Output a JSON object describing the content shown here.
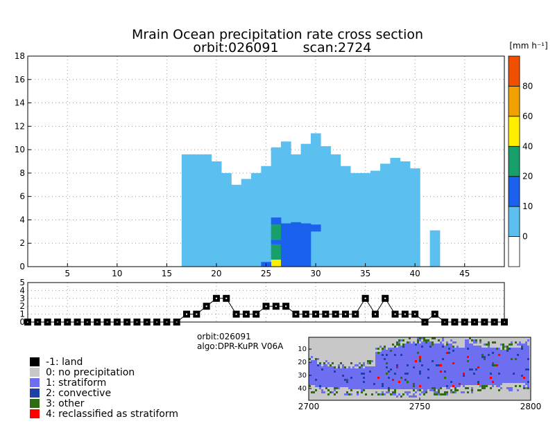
{
  "title_line1": "Mrain Ocean precipitation rate cross section",
  "title_line2_orbit": "orbit:026091",
  "title_line2_scan": "scan:2724",
  "unit_label": "[mm h⁻¹]",
  "chart_data": [
    {
      "type": "heatmap",
      "name": "precipitation-cross-section",
      "title": "Mrain Ocean precipitation rate cross section",
      "xlim": [
        1,
        49
      ],
      "ylim": [
        0,
        18
      ],
      "x_ticks": [
        5,
        10,
        15,
        20,
        25,
        30,
        35,
        40,
        45
      ],
      "y_ticks": [
        0,
        2,
        4,
        6,
        8,
        10,
        12,
        14,
        16,
        18
      ],
      "grid": true,
      "colorbar": {
        "boundaries": [
          0,
          1,
          10,
          20,
          40,
          60,
          80,
          100
        ],
        "labels": [
          "0",
          "10",
          "20",
          "40",
          "60",
          "80"
        ],
        "colors": [
          "#ffffff",
          "#5bc0f0",
          "#1a62ee",
          "#19a06a",
          "#ffee00",
          "#f0a000",
          "#f05000"
        ]
      },
      "echo_top_km": [
        {
          "ray": 17,
          "top": 9.6
        },
        {
          "ray": 18,
          "top": 9.6
        },
        {
          "ray": 19,
          "top": 9.6
        },
        {
          "ray": 20,
          "top": 9.0
        },
        {
          "ray": 21,
          "top": 8.0
        },
        {
          "ray": 22,
          "top": 7.0
        },
        {
          "ray": 23,
          "top": 7.5
        },
        {
          "ray": 24,
          "top": 8.0
        },
        {
          "ray": 25,
          "top": 8.6
        },
        {
          "ray": 26,
          "top": 10.2
        },
        {
          "ray": 27,
          "top": 10.7
        },
        {
          "ray": 28,
          "top": 9.6
        },
        {
          "ray": 29,
          "top": 10.5
        },
        {
          "ray": 30,
          "top": 11.4
        },
        {
          "ray": 31,
          "top": 10.3
        },
        {
          "ray": 32,
          "top": 9.6
        },
        {
          "ray": 33,
          "top": 8.6
        },
        {
          "ray": 34,
          "top": 8.0
        },
        {
          "ray": 35,
          "top": 8.0
        },
        {
          "ray": 36,
          "top": 8.2
        },
        {
          "ray": 37,
          "top": 8.8
        },
        {
          "ray": 38,
          "top": 9.3
        },
        {
          "ray": 39,
          "top": 9.0
        },
        {
          "ray": 40,
          "top": 8.4
        },
        {
          "ray": 42,
          "top": 3.1
        }
      ],
      "convective_cells": [
        {
          "ray": 26,
          "base": 0.0,
          "top": 0.6,
          "class": "40-60"
        },
        {
          "ray": 26,
          "base": 0.6,
          "top": 1.9,
          "class": "20-40"
        },
        {
          "ray": 26,
          "base": 1.9,
          "top": 2.3,
          "class": "10-20"
        },
        {
          "ray": 26,
          "base": 2.3,
          "top": 3.6,
          "class": "20-40"
        },
        {
          "ray": 26,
          "base": 3.6,
          "top": 4.2,
          "class": "10-20"
        },
        {
          "ray": 25,
          "base": 0.0,
          "top": 0.4,
          "class": "10-20"
        },
        {
          "ray": 27,
          "base": 0.0,
          "top": 3.7,
          "class": "10-20"
        },
        {
          "ray": 28,
          "base": 0.0,
          "top": 3.8,
          "class": "10-20"
        },
        {
          "ray": 29,
          "base": 0.0,
          "top": 3.7,
          "class": "10-20"
        },
        {
          "ray": 30,
          "base": 3.0,
          "top": 3.6,
          "class": "10-20"
        }
      ]
    },
    {
      "type": "line",
      "name": "precipitation-type-strip",
      "xlim": [
        1,
        49
      ],
      "ylim": [
        0,
        5
      ],
      "y_ticks": [
        0,
        1,
        2,
        3,
        4,
        5
      ],
      "grid": true,
      "x": [
        1,
        2,
        3,
        4,
        5,
        6,
        7,
        8,
        9,
        10,
        11,
        12,
        13,
        14,
        15,
        16,
        17,
        18,
        19,
        20,
        21,
        22,
        23,
        24,
        25,
        26,
        27,
        28,
        29,
        30,
        31,
        32,
        33,
        34,
        35,
        36,
        37,
        38,
        39,
        40,
        41,
        42,
        43,
        44,
        45,
        46,
        47,
        48,
        49
      ],
      "values": [
        0,
        0,
        0,
        0,
        0,
        0,
        0,
        0,
        0,
        0,
        0,
        0,
        0,
        0,
        0,
        0,
        1,
        1,
        2,
        3,
        3,
        1,
        1,
        1,
        2,
        2,
        2,
        1,
        1,
        1,
        1,
        1,
        1,
        1,
        3,
        1,
        3,
        1,
        1,
        1,
        0,
        1,
        0,
        0,
        0,
        0,
        0,
        0,
        0
      ],
      "land_flag": [
        1,
        1,
        1,
        1,
        1,
        1,
        1,
        1,
        1,
        1,
        1,
        1,
        1,
        1,
        1,
        1,
        1,
        1,
        1,
        1,
        1,
        1,
        1,
        1,
        1,
        1,
        1,
        1,
        1,
        1,
        1,
        1,
        1,
        1,
        1,
        1,
        1,
        1,
        1,
        1,
        1,
        1,
        1,
        1,
        1,
        1,
        1,
        1,
        1
      ]
    },
    {
      "type": "heatmap",
      "name": "orbit-swath-map",
      "xlim": [
        2700,
        2800
      ],
      "ylim": [
        1,
        49
      ],
      "x_ticks": [
        2700,
        2750,
        2800
      ],
      "y_ticks": [
        10,
        20,
        30,
        40
      ],
      "classes": [
        "-1",
        "0",
        "1",
        "2",
        "3",
        "4"
      ]
    }
  ],
  "orbit_label": "orbit:026091",
  "algo_label": "algo:DPR-KuPR V06A",
  "legend": [
    {
      "label": "-1: land",
      "color": "#000000"
    },
    {
      "label": "0: no precipitation",
      "color": "#c8c8c8"
    },
    {
      "label": "1: stratiform",
      "color": "#6e6ef0"
    },
    {
      "label": "2: convective",
      "color": "#1e3fa6"
    },
    {
      "label": "3: other",
      "color": "#2f6b12"
    },
    {
      "label": "4: reclassified as stratiform",
      "color": "#ff0000"
    }
  ]
}
